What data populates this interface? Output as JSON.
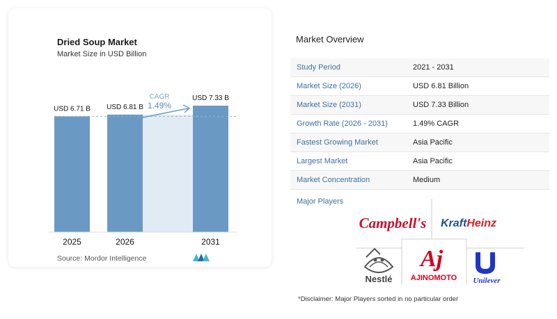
{
  "chart": {
    "title": "Dried Soup Market",
    "subtitle": "Market Size in USD Billion",
    "source": "Source:  Mordor Intelligence",
    "cagr_label": "CAGR",
    "cagr_value": "1.49%"
  },
  "chart_data": {
    "type": "bar",
    "title": "Dried Soup Market",
    "subtitle": "Market Size in USD Billion",
    "categories": [
      "2025",
      "2026",
      "2031"
    ],
    "values": [
      6.71,
      6.81,
      7.33
    ],
    "data_labels": [
      "USD 6.71 B",
      "USD 6.81 B",
      "USD 7.33 B"
    ],
    "ylim": [
      0,
      7.33
    ],
    "grid": false,
    "legend": "none",
    "bar_color": "#6a9ac4",
    "shade_color": "#e1ebf4"
  },
  "overview": {
    "title": "Market Overview",
    "rows": [
      {
        "label": "Study Period",
        "value": "2021 - 2031"
      },
      {
        "label": "Market Size (2026)",
        "value": "USD 6.81 Billion"
      },
      {
        "label": "Market Size (2031)",
        "value": "USD 7.33 Billion"
      },
      {
        "label": "Growth Rate (2026 - 2031)",
        "value": "1.49% CAGR"
      },
      {
        "label": "Fastest Growing Market",
        "value": "Asia Pacific"
      },
      {
        "label": "Largest Market",
        "value": "Asia Pacific"
      },
      {
        "label": "Market Concentration",
        "value": "Medium"
      }
    ],
    "players_label": "Major Players",
    "players": [
      "Campbell's",
      "KraftHeinz",
      "Nestle",
      "AJINOMOTO",
      "Unilever"
    ],
    "disclaimer": "*Disclaimer: Major Players sorted in no particular order"
  },
  "colors": {
    "accent": "#3f6f9f",
    "campbells_red": "#c8102e",
    "ajinomoto_red": "#d6001c",
    "unilever_blue": "#1f36c7",
    "kraft_blue": "#1d4f91",
    "heinz_red": "#d2232a"
  }
}
